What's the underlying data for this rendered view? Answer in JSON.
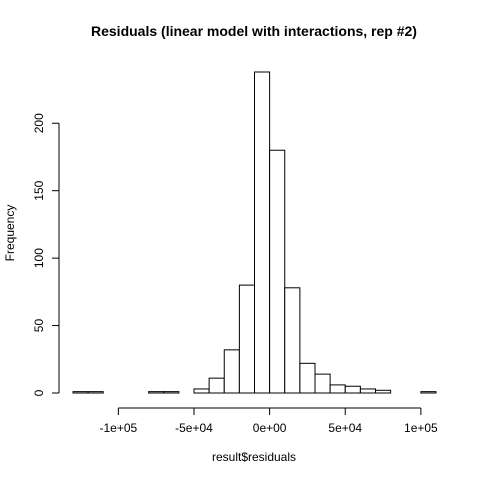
{
  "chart_data": {
    "type": "bar",
    "title": "Residuals (linear model with interactions, rep #2)",
    "xlabel": "result$residuals",
    "ylabel": "Frequency",
    "bin_width": 10000,
    "bins": [
      {
        "x0": -130000,
        "x1": -120000,
        "count": 1
      },
      {
        "x0": -120000,
        "x1": -110000,
        "count": 1
      },
      {
        "x0": -110000,
        "x1": -100000,
        "count": 0
      },
      {
        "x0": -100000,
        "x1": -90000,
        "count": 0
      },
      {
        "x0": -90000,
        "x1": -80000,
        "count": 0
      },
      {
        "x0": -80000,
        "x1": -70000,
        "count": 1
      },
      {
        "x0": -70000,
        "x1": -60000,
        "count": 1
      },
      {
        "x0": -60000,
        "x1": -50000,
        "count": 0
      },
      {
        "x0": -50000,
        "x1": -40000,
        "count": 3
      },
      {
        "x0": -40000,
        "x1": -30000,
        "count": 11
      },
      {
        "x0": -30000,
        "x1": -20000,
        "count": 32
      },
      {
        "x0": -20000,
        "x1": -10000,
        "count": 80
      },
      {
        "x0": -10000,
        "x1": 0,
        "count": 238
      },
      {
        "x0": 0,
        "x1": 10000,
        "count": 180
      },
      {
        "x0": 10000,
        "x1": 20000,
        "count": 78
      },
      {
        "x0": 20000,
        "x1": 30000,
        "count": 22
      },
      {
        "x0": 30000,
        "x1": 40000,
        "count": 14
      },
      {
        "x0": 40000,
        "x1": 50000,
        "count": 6
      },
      {
        "x0": 50000,
        "x1": 60000,
        "count": 5
      },
      {
        "x0": 60000,
        "x1": 70000,
        "count": 3
      },
      {
        "x0": 70000,
        "x1": 80000,
        "count": 2
      },
      {
        "x0": 80000,
        "x1": 90000,
        "count": 0
      },
      {
        "x0": 90000,
        "x1": 100000,
        "count": 0
      },
      {
        "x0": 100000,
        "x1": 110000,
        "count": 1
      }
    ],
    "xlim": [
      -130000,
      110000
    ],
    "ylim": [
      0,
      240
    ],
    "x_ticks": [
      {
        "value": -100000,
        "label": "-1e+05"
      },
      {
        "value": -50000,
        "label": "-5e+04"
      },
      {
        "value": 0,
        "label": "0e+00"
      },
      {
        "value": 50000,
        "label": "5e+04"
      },
      {
        "value": 100000,
        "label": "1e+05"
      }
    ],
    "y_ticks": [
      {
        "value": 0,
        "label": "0"
      },
      {
        "value": 50,
        "label": "50"
      },
      {
        "value": 100,
        "label": "100"
      },
      {
        "value": 150,
        "label": "150"
      },
      {
        "value": 200,
        "label": "200"
      }
    ],
    "grid": false,
    "colors": {
      "bar_fill": "#ffffff",
      "bar_stroke": "#000000"
    }
  }
}
